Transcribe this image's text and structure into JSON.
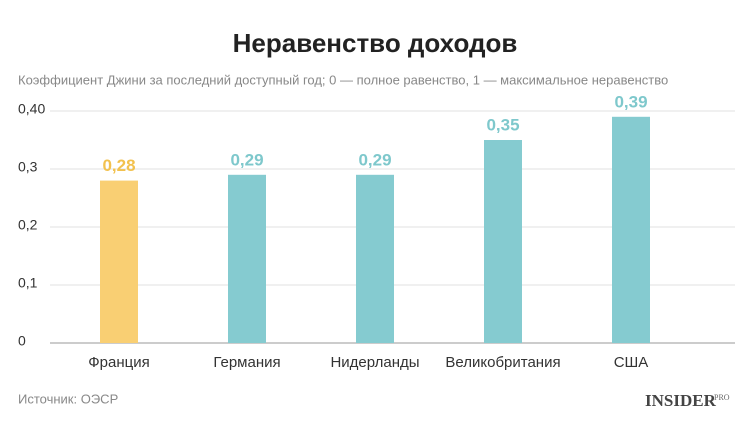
{
  "chart_data": {
    "type": "bar",
    "title": "Неравенство доходов",
    "subtitle": "Коэффициент Джини за последний доступный год; 0 — полное равенство, 1 — максимальное неравенство",
    "categories": [
      "Франция",
      "Германия",
      "Нидерланды",
      "Великобритания",
      "США"
    ],
    "values": [
      0.28,
      0.29,
      0.29,
      0.35,
      0.39
    ],
    "value_labels": [
      "0,28",
      "0,29",
      "0,29",
      "0,35",
      "0,39"
    ],
    "colors": [
      "#f9cf73",
      "#85cbd0",
      "#85cbd0",
      "#85cbd0",
      "#85cbd0"
    ],
    "label_colors": [
      "#f2c14e",
      "#7ec8cc",
      "#7ec8cc",
      "#7ec8cc",
      "#7ec8cc"
    ],
    "ylim": [
      0,
      0.4
    ],
    "yticks": [
      0,
      {
        "value": 0.1,
        "label": "0,1"
      },
      {
        "value": 0.2,
        "label": "0,2"
      },
      {
        "value": 0.3,
        "label": "0,3"
      },
      {
        "value": 0.4,
        "label": "0,40"
      }
    ],
    "grid": true
  },
  "footer": {
    "source": "Источник: ОЭСР",
    "logo": "INSIDER",
    "logo_suffix": "PRO"
  }
}
